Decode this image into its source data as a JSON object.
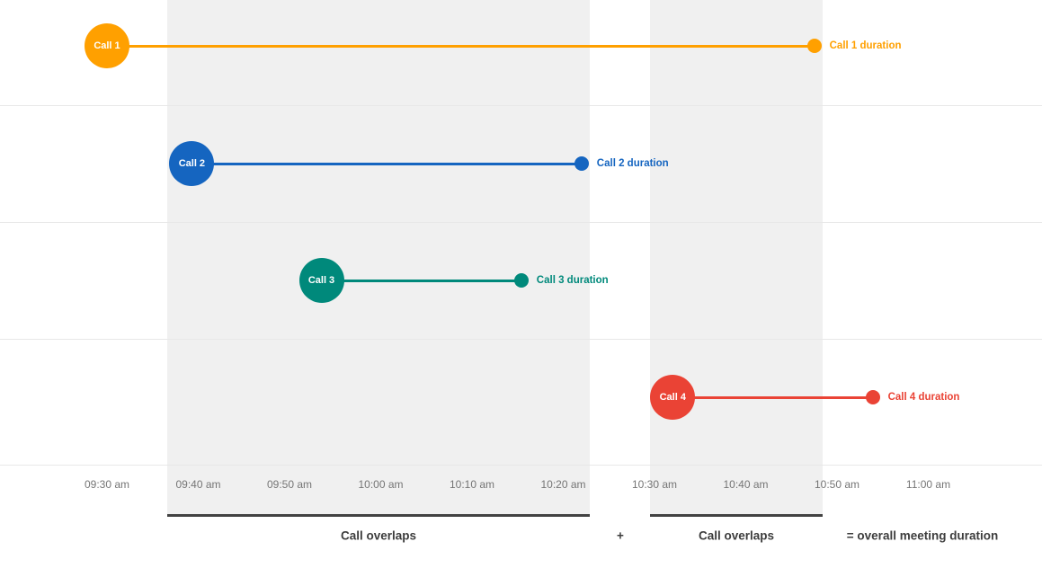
{
  "chart_data": {
    "type": "timeline",
    "x_axis": {
      "tick_labels": [
        "09:30 am",
        "09:40 am",
        "09:50 am",
        "10:00 am",
        "10:10 am",
        "10:20 am",
        "10:30 am",
        "10:40 am",
        "10:50 am",
        "11:00 am"
      ],
      "tick_interval_min": 10,
      "range_min": [
        0,
        90
      ]
    },
    "calls": [
      {
        "label": "Call 1",
        "duration_label": "Call 1 duration",
        "color": "#FFA000",
        "start": "09:30 am",
        "end": "10:47 am",
        "start_min": 0,
        "end_min": 77.5
      },
      {
        "label": "Call 2",
        "duration_label": "Call 2 duration",
        "color": "#1565C0",
        "start": "09:39 am",
        "end": "10:22 am",
        "start_min": 9.3,
        "end_min": 52
      },
      {
        "label": "Call 3",
        "duration_label": "Call 3 duration",
        "color": "#00897B",
        "start": "09:53 am",
        "end": "10:15 am",
        "start_min": 23.5,
        "end_min": 45.4
      },
      {
        "label": "Call 4",
        "duration_label": "Call 4 duration",
        "color": "#EA4335",
        "start": "10:32 am",
        "end": "10:54 am",
        "start_min": 62,
        "end_min": 83.9
      }
    ],
    "overlap_bands": [
      {
        "start_min": 6.6,
        "end_min": 52.9
      },
      {
        "start_min": 59.5,
        "end_min": 78.4
      }
    ],
    "footer": {
      "overlap_left": "Call overlaps",
      "plus": "+",
      "overlap_right": "Call overlaps",
      "equals": "= overall meeting duration"
    }
  }
}
